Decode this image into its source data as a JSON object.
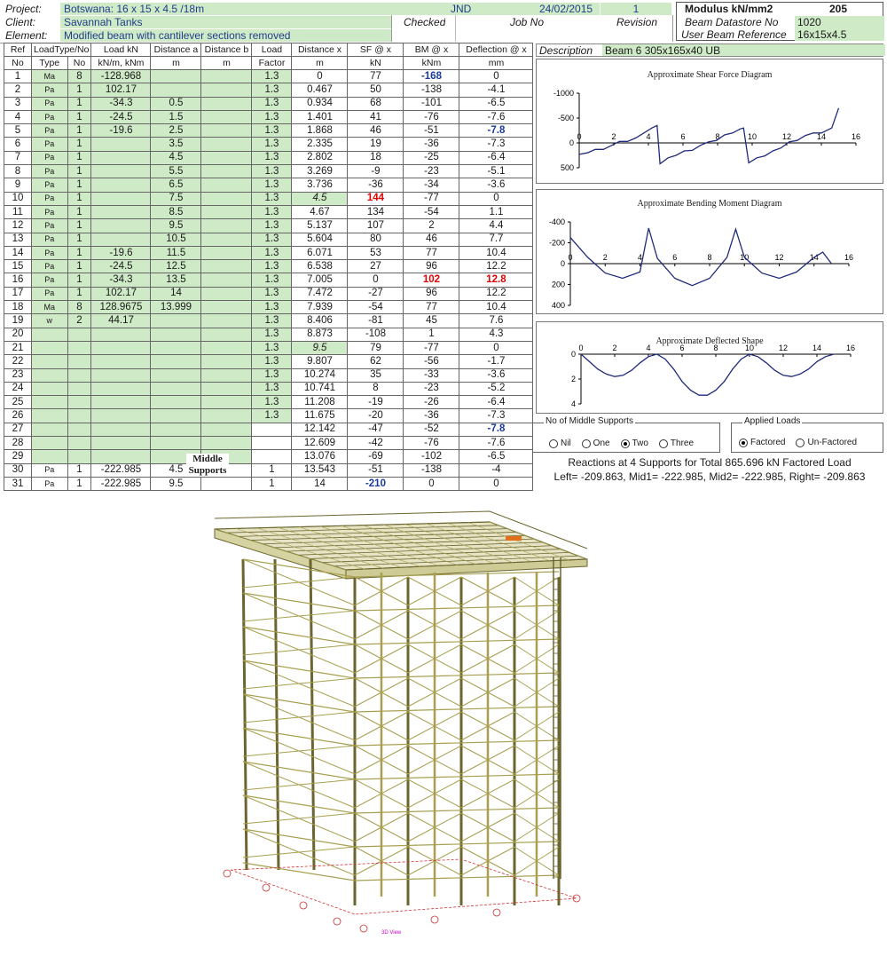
{
  "header": {
    "project_label": "Project:",
    "project_value": "Botswana: 16 x 15 x 4.5 /18m",
    "client_label": "Client:",
    "client_value": "Savannah Tanks",
    "element_label": "Element:",
    "element_value": "Modified beam with cantilever sections removed",
    "checked_by": "JND",
    "date": "24/02/2015",
    "revision_num": "1",
    "checked_label": "Checked",
    "jobno_label": "Job No",
    "revision_label": "Revision",
    "modulus_label": "Modulus kN/mm2",
    "modulus_value": "205",
    "datastore_label": "Beam Datastore No",
    "datastore_value": "1020",
    "userref_label": "User Beam Reference",
    "userref_value": "16x15x4.5",
    "description_label": "Description",
    "description_value": "Beam 6 305x165x40 UB"
  },
  "table": {
    "headers1": [
      "Ref",
      "LoadType/No",
      "",
      "Load kN",
      "Distance a",
      "Distance b",
      "Load",
      "Distance x",
      "SF @ x",
      "BM @ x",
      "Deflection @ x"
    ],
    "headers2": [
      "No",
      "Type",
      "No",
      "kN/m, kNm",
      "m",
      "m",
      "Factor",
      "m",
      "kN",
      "kNm",
      "mm"
    ],
    "rows": [
      [
        "1",
        "Ma",
        "8",
        "-128.968",
        "",
        "",
        "1.3",
        "0",
        "77",
        "-168",
        "0"
      ],
      [
        "2",
        "Pa",
        "1",
        "102.17",
        "",
        "",
        "1.3",
        "0.467",
        "50",
        "-138",
        "-4.1"
      ],
      [
        "3",
        "Pa",
        "1",
        "-34.3",
        "0.5",
        "",
        "1.3",
        "0.934",
        "68",
        "-101",
        "-6.5"
      ],
      [
        "4",
        "Pa",
        "1",
        "-24.5",
        "1.5",
        "",
        "1.3",
        "1.401",
        "41",
        "-76",
        "-7.6"
      ],
      [
        "5",
        "Pa",
        "1",
        "-19.6",
        "2.5",
        "",
        "1.3",
        "1.868",
        "46",
        "-51",
        "-7.8"
      ],
      [
        "6",
        "Pa",
        "1",
        "",
        "3.5",
        "",
        "1.3",
        "2.335",
        "19",
        "-36",
        "-7.3"
      ],
      [
        "7",
        "Pa",
        "1",
        "",
        "4.5",
        "",
        "1.3",
        "2.802",
        "18",
        "-25",
        "-6.4"
      ],
      [
        "8",
        "Pa",
        "1",
        "",
        "5.5",
        "",
        "1.3",
        "3.269",
        "-9",
        "-23",
        "-5.1"
      ],
      [
        "9",
        "Pa",
        "1",
        "",
        "6.5",
        "",
        "1.3",
        "3.736",
        "-36",
        "-34",
        "-3.6"
      ],
      [
        "10",
        "Pa",
        "1",
        "",
        "7.5",
        "",
        "1.3",
        "4.5",
        "144",
        "-77",
        "0"
      ],
      [
        "11",
        "Pa",
        "1",
        "",
        "8.5",
        "",
        "1.3",
        "4.67",
        "134",
        "-54",
        "1.1"
      ],
      [
        "12",
        "Pa",
        "1",
        "",
        "9.5",
        "",
        "1.3",
        "5.137",
        "107",
        "2",
        "4.4"
      ],
      [
        "13",
        "Pa",
        "1",
        "",
        "10.5",
        "",
        "1.3",
        "5.604",
        "80",
        "46",
        "7.7"
      ],
      [
        "14",
        "Pa",
        "1",
        "-19.6",
        "11.5",
        "",
        "1.3",
        "6.071",
        "53",
        "77",
        "10.4"
      ],
      [
        "15",
        "Pa",
        "1",
        "-24.5",
        "12.5",
        "",
        "1.3",
        "6.538",
        "27",
        "96",
        "12.2"
      ],
      [
        "16",
        "Pa",
        "1",
        "-34.3",
        "13.5",
        "",
        "1.3",
        "7.005",
        "0",
        "102",
        "12.8"
      ],
      [
        "17",
        "Pa",
        "1",
        "102.17",
        "14",
        "",
        "1.3",
        "7.472",
        "-27",
        "96",
        "12.2"
      ],
      [
        "18",
        "Ma",
        "8",
        "128.9675",
        "13.999",
        "",
        "1.3",
        "7.939",
        "-54",
        "77",
        "10.4"
      ],
      [
        "19",
        "w",
        "2",
        "44.17",
        "",
        "",
        "1.3",
        "8.406",
        "-81",
        "45",
        "7.6"
      ],
      [
        "20",
        "",
        "",
        "",
        "",
        "",
        "1.3",
        "8.873",
        "-108",
        "1",
        "4.3"
      ],
      [
        "21",
        "",
        "",
        "",
        "",
        "",
        "1.3",
        "9.5",
        "79",
        "-77",
        "0"
      ],
      [
        "22",
        "",
        "",
        "",
        "",
        "",
        "1.3",
        "9.807",
        "62",
        "-56",
        "-1.7"
      ],
      [
        "23",
        "",
        "",
        "",
        "",
        "",
        "1.3",
        "10.274",
        "35",
        "-33",
        "-3.6"
      ],
      [
        "24",
        "",
        "",
        "",
        "",
        "",
        "1.3",
        "10.741",
        "8",
        "-23",
        "-5.2"
      ],
      [
        "25",
        "",
        "",
        "",
        "",
        "",
        "1.3",
        "11.208",
        "-19",
        "-26",
        "-6.4"
      ],
      [
        "26",
        "",
        "",
        "",
        "",
        "",
        "1.3",
        "11.675",
        "-20",
        "-36",
        "-7.3"
      ],
      [
        "27",
        "",
        "",
        "",
        "",
        "",
        "",
        "12.142",
        "-47",
        "-52",
        "-7.8"
      ],
      [
        "28",
        "",
        "",
        "",
        "",
        "",
        "",
        "12.609",
        "-42",
        "-76",
        "-7.6"
      ],
      [
        "29",
        "",
        "",
        "",
        "",
        "",
        "",
        "13.076",
        "-69",
        "-102",
        "-6.5"
      ],
      [
        "30",
        "Pa",
        "1",
        "-222.985",
        "4.5",
        "",
        "1",
        "13.543",
        "-51",
        "-138",
        "-4"
      ],
      [
        "31",
        "Pa",
        "1",
        "-222.985",
        "9.5",
        "",
        "1",
        "14",
        "-210",
        "0",
        "0"
      ]
    ],
    "middle_supports_label": "Middle Supports"
  },
  "charts": {
    "sf_title": "Approximate Shear Force Diagram",
    "bm_title": "Approximate Bending Moment Diagram",
    "defl_title": "Approximate Deflected Shape"
  },
  "chart_data": [
    {
      "type": "line",
      "title": "Approximate Shear Force Diagram",
      "xlim": [
        0,
        16
      ],
      "ylim": [
        -1000,
        500
      ],
      "y_inverted": true,
      "x_ticks": [
        0,
        2,
        4,
        6,
        8,
        10,
        12,
        14,
        16
      ],
      "y_ticks": [
        -1000,
        -500,
        0,
        500
      ],
      "x": [
        0,
        0.47,
        0.93,
        1.4,
        1.87,
        2.33,
        2.8,
        3.27,
        3.74,
        4.2,
        4.5,
        4.67,
        5.14,
        5.6,
        6.07,
        6.54,
        7.0,
        7.47,
        7.94,
        8.4,
        8.87,
        9.3,
        9.5,
        9.8,
        10.27,
        10.74,
        11.2,
        11.67,
        12.14,
        12.6,
        13.08,
        13.54,
        14.0,
        14.6,
        15.0
      ],
      "y": [
        230,
        200,
        130,
        130,
        50,
        -30,
        -30,
        -100,
        -200,
        -300,
        -350,
        420,
        300,
        250,
        160,
        150,
        50,
        -20,
        -50,
        -160,
        -200,
        -280,
        -300,
        400,
        300,
        260,
        160,
        100,
        -20,
        -50,
        -150,
        -200,
        -200,
        -300,
        -700
      ]
    },
    {
      "type": "line",
      "title": "Approximate Bending Moment Diagram",
      "xlim": [
        0,
        16
      ],
      "ylim": [
        -400,
        400
      ],
      "y_inverted": true,
      "x_ticks": [
        0,
        2,
        4,
        6,
        8,
        10,
        12,
        14,
        16
      ],
      "y_ticks": [
        -400,
        -200,
        0,
        200,
        400
      ],
      "x": [
        0,
        1,
        2,
        3,
        4,
        4.5,
        5,
        6,
        7,
        8,
        9,
        9.5,
        10,
        11,
        12,
        13,
        14,
        14.5,
        15
      ],
      "y": [
        -250,
        -60,
        90,
        140,
        80,
        -340,
        -50,
        140,
        210,
        140,
        -60,
        -330,
        -60,
        90,
        140,
        80,
        -60,
        -110,
        0
      ]
    },
    {
      "type": "line",
      "title": "Approximate Deflected Shape",
      "xlim": [
        0,
        16
      ],
      "ylim": [
        0,
        4
      ],
      "x_ticks": [
        0,
        2,
        4,
        6,
        8,
        10,
        12,
        14,
        16
      ],
      "y_ticks": [
        0,
        2,
        4
      ],
      "x": [
        0,
        0.5,
        1,
        1.5,
        2,
        2.5,
        3,
        3.5,
        4,
        4.5,
        5,
        5.5,
        6,
        6.5,
        7,
        7.5,
        8,
        8.5,
        9,
        9.5,
        10,
        10.5,
        11,
        11.5,
        12,
        12.5,
        13,
        13.5,
        14,
        14.5,
        15
      ],
      "y": [
        0,
        0.6,
        1.2,
        1.6,
        1.8,
        1.7,
        1.3,
        0.7,
        0.2,
        0,
        0.4,
        1.2,
        2.2,
        2.9,
        3.3,
        3.3,
        2.9,
        2.2,
        1.2,
        0.4,
        0,
        0.2,
        0.7,
        1.3,
        1.7,
        1.8,
        1.6,
        1.2,
        0.6,
        0.2,
        0
      ]
    }
  ],
  "supports": {
    "title": "No of Middle Supports",
    "options": [
      "Nil",
      "One",
      "Two",
      "Three"
    ],
    "selected": "Two"
  },
  "loads": {
    "title": "Applied Loads",
    "options": [
      "Factored",
      "Un-Factored"
    ],
    "selected": "Factored"
  },
  "reactions": {
    "line1": "Reactions at 4 Supports for Total 865.696 kN Factored Load",
    "line2": "Left= -209.863, Mid1= -222.985, Mid2= -222.985, Right= -209.863"
  },
  "model": {
    "caption": "3D View"
  }
}
